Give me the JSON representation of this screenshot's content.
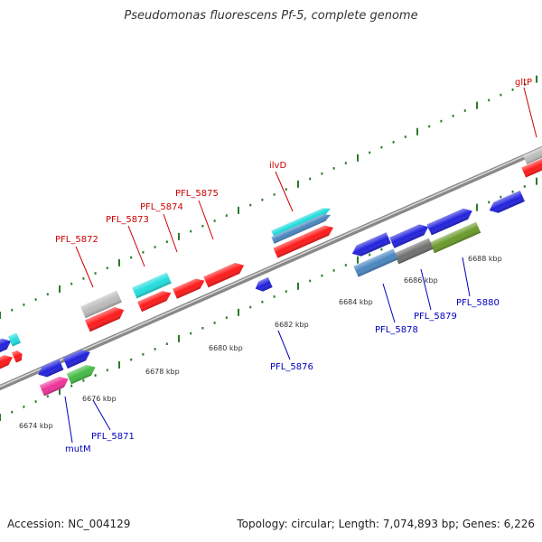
{
  "title": "Pseudomonas fluorescens Pf-5, complete genome",
  "footer": {
    "accession": "Accession: NC_004129",
    "summary": "Topology: circular; Length: 7,074,893 bp; Genes: 6,226"
  },
  "colors": {
    "plus_strand_label": "#cc0000",
    "minus_strand_label": "#0000bb",
    "tick": "#2a7a2a",
    "backbone": "#888888",
    "red": "#ff1a1a",
    "blue": "#2222dd",
    "cyan": "#22dddd",
    "grey": "#bbbbbb",
    "steelblue": "#4a86c0",
    "darkgrey": "#707070",
    "olive": "#6a9a2a",
    "green": "#44bb44",
    "magenta": "#ee3399"
  },
  "scale_labels": [
    "6674 kbp",
    "6676 kbp",
    "6678 kbp",
    "6680 kbp",
    "6682 kbp",
    "6684 kbp",
    "6686 kbp",
    "6688 kbp"
  ],
  "gene_labels_top": [
    "gltP",
    "ilvD",
    "PFL_5875",
    "PFL_5874",
    "PFL_5873",
    "PFL_5872"
  ],
  "gene_labels_bottom": [
    "PFL_5876",
    "PFL_5878",
    "PFL_5879",
    "PFL_5880",
    "PFL_5871",
    "mutM"
  ]
}
